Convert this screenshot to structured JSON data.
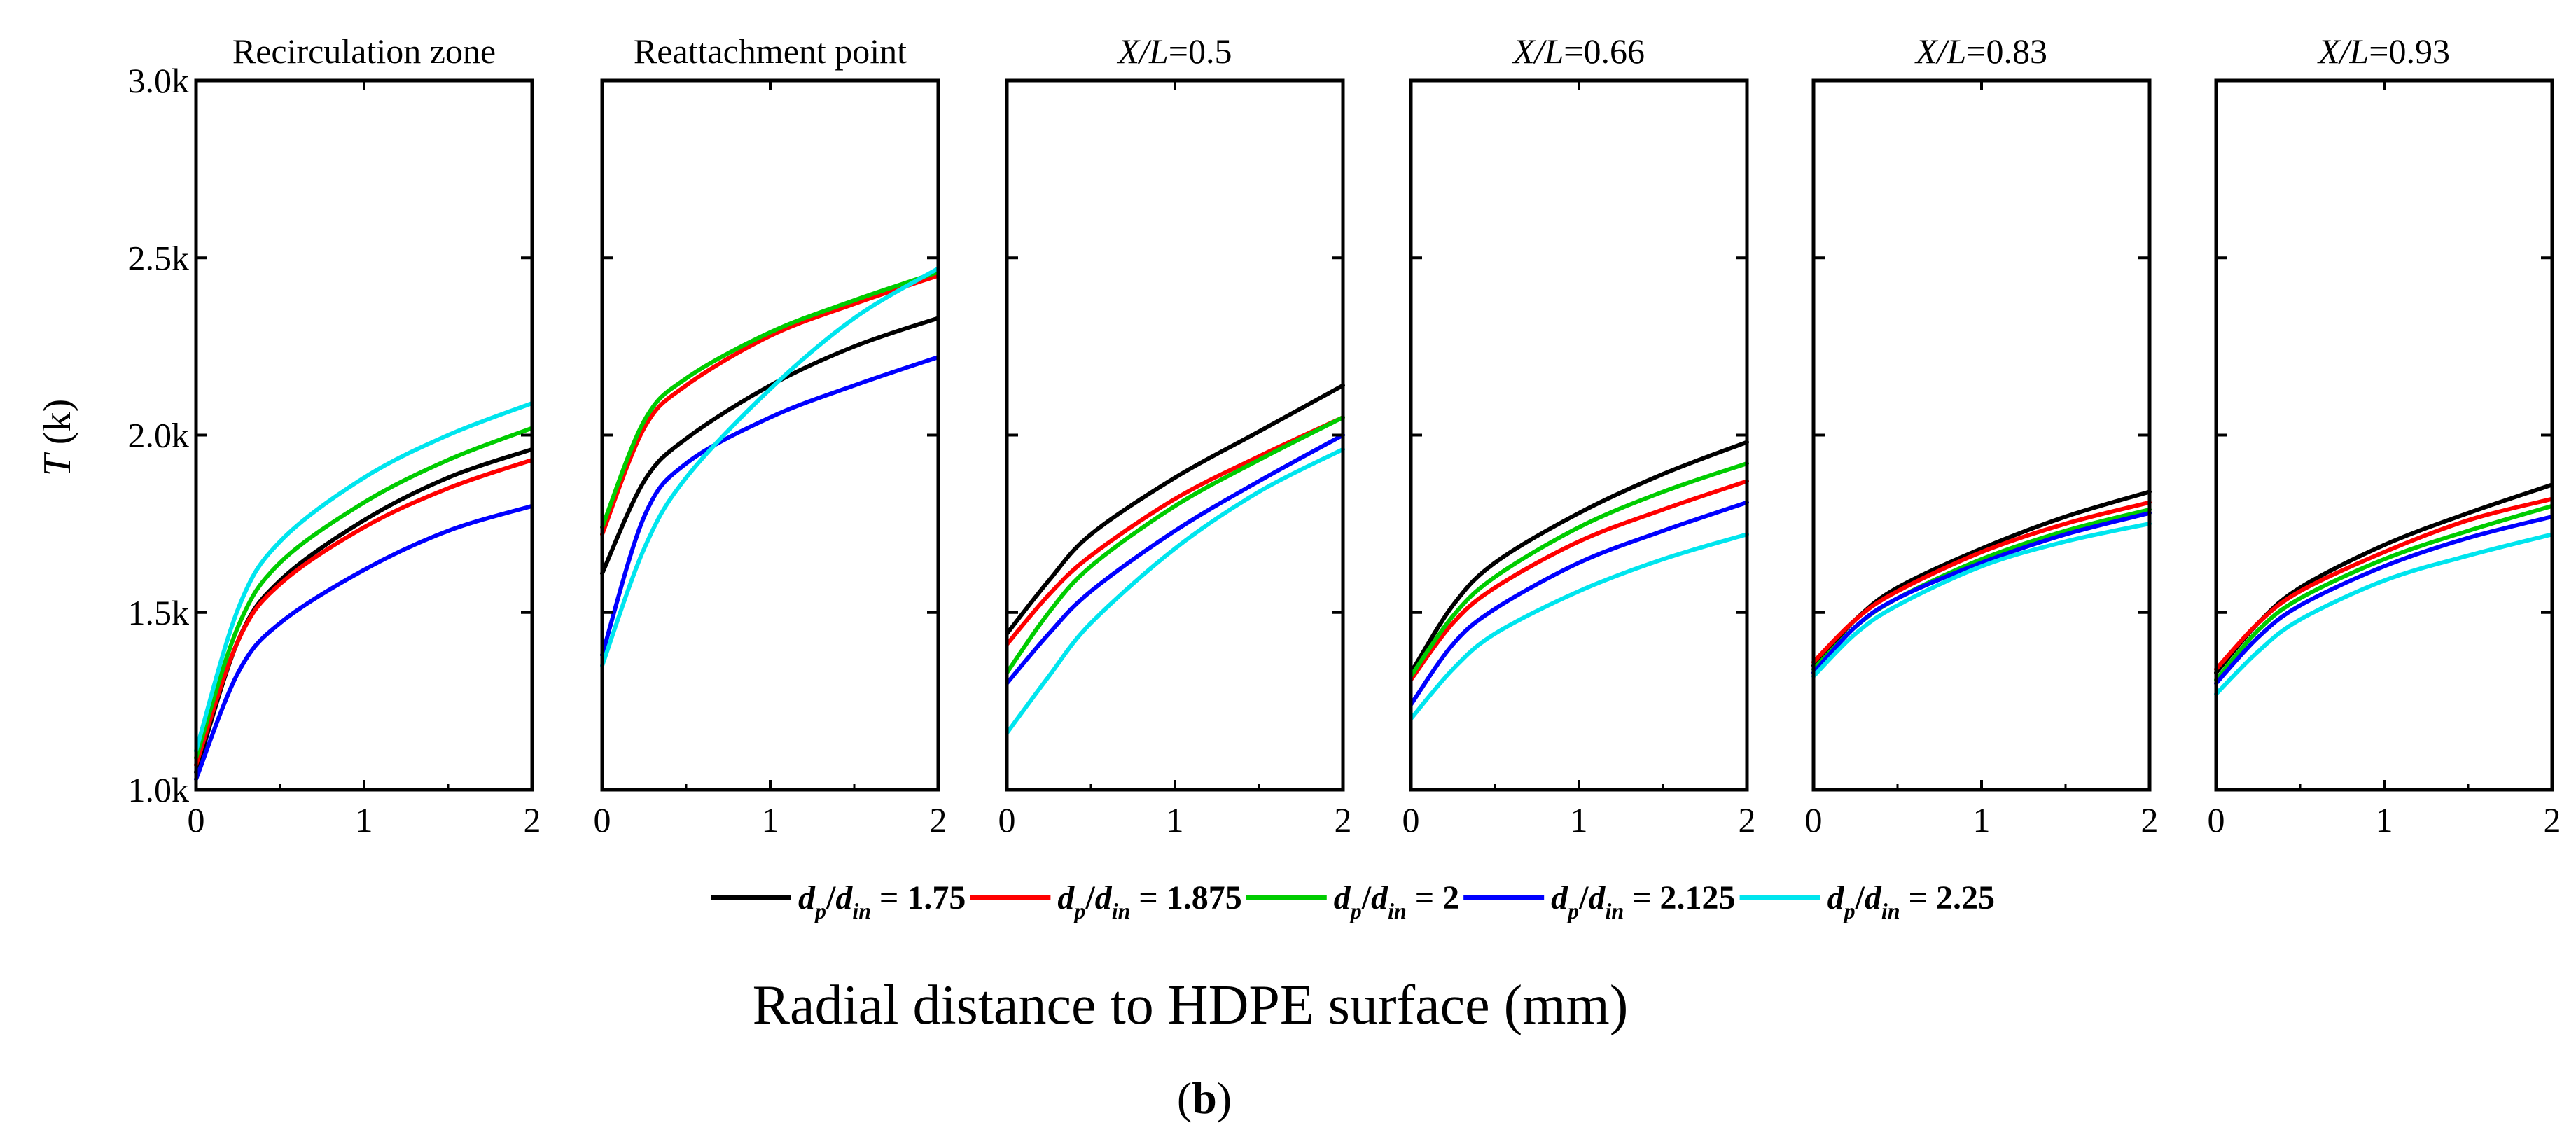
{
  "figure": {
    "xlabel": "Radial distance to HDPE surface (mm)",
    "ylabel_italic": "T",
    "ylabel_rest": " (k)",
    "caption_open": "(",
    "caption_letter": "b",
    "caption_close": ")"
  },
  "legend": [
    {
      "name": "d_p/d_in = 1.75",
      "sym1": "d",
      "sub1": "p",
      "slash": "/",
      "sym2": "d",
      "sub2": "in",
      "value_text": " = 1.75",
      "color": "#000000"
    },
    {
      "name": "d_p/d_in = 1.875",
      "sym1": "d",
      "sub1": "p",
      "slash": "/",
      "sym2": "d",
      "sub2": "in",
      "value_text": " = 1.875",
      "color": "#ff0000"
    },
    {
      "name": "d_p/d_in = 2",
      "sym1": "d",
      "sub1": "p",
      "slash": "/",
      "sym2": "d",
      "sub2": "in",
      "value_text": " = 2",
      "color": "#00cc00"
    },
    {
      "name": "d_p/d_in = 2.125",
      "sym1": "d",
      "sub1": "p",
      "slash": "/",
      "sym2": "d",
      "sub2": "in",
      "value_text": " = 2.125",
      "color": "#0000ff"
    },
    {
      "name": "d_p/d_in = 2.25",
      "sym1": "d",
      "sub1": "p",
      "slash": "/",
      "sym2": "d",
      "sub2": "in",
      "value_text": " = 2.25",
      "color": "#00e5ee"
    }
  ],
  "chart_data": {
    "type": "line",
    "shared_x": [
      0,
      0.25,
      0.5,
      1,
      1.5,
      2
    ],
    "x_ticks": [
      0,
      1,
      2
    ],
    "x_tick_labels": [
      "0",
      "1",
      "2"
    ],
    "xlim": [
      0,
      2
    ],
    "y_ticks": [
      1000,
      1500,
      2000,
      2500,
      3000
    ],
    "y_tick_labels": [
      "1.0k",
      "1.5k",
      "2.0k",
      "2.5k",
      "3.0k"
    ],
    "ylim": [
      1000,
      3000
    ],
    "panels": [
      {
        "title": "Recirculation zone",
        "title_italic": "",
        "title_rest": "",
        "series": [
          {
            "name": "d_p/d_in = 1.75",
            "values": [
              1050,
              1420,
              1590,
              1760,
              1880,
              1960
            ]
          },
          {
            "name": "d_p/d_in = 1.875",
            "values": [
              1070,
              1420,
              1580,
              1740,
              1850,
              1930
            ]
          },
          {
            "name": "d_p/d_in = 2",
            "values": [
              1090,
              1460,
              1640,
              1810,
              1930,
              2020
            ]
          },
          {
            "name": "d_p/d_in = 2.125",
            "values": [
              1030,
              1330,
              1470,
              1620,
              1730,
              1800
            ]
          },
          {
            "name": "d_p/d_in = 2.25",
            "values": [
              1110,
              1510,
              1700,
              1880,
              2000,
              2090
            ]
          }
        ]
      },
      {
        "title": "Reattachment point",
        "title_italic": "",
        "title_rest": "",
        "series": [
          {
            "name": "d_p/d_in = 1.75",
            "values": [
              1610,
              1870,
              1990,
              2140,
              2250,
              2330
            ]
          },
          {
            "name": "d_p/d_in = 1.875",
            "values": [
              1720,
              2020,
              2140,
              2280,
              2370,
              2450
            ]
          },
          {
            "name": "d_p/d_in = 2",
            "values": [
              1740,
              2040,
              2160,
              2290,
              2380,
              2460
            ]
          },
          {
            "name": "d_p/d_in = 2.125",
            "values": [
              1380,
              1770,
              1920,
              2050,
              2140,
              2220
            ]
          },
          {
            "name": "d_p/d_in = 2.25",
            "values": [
              1350,
              1680,
              1880,
              2130,
              2330,
              2470
            ]
          }
        ]
      },
      {
        "title": "",
        "title_italic": "X/L",
        "title_rest": "=0.5",
        "series": [
          {
            "name": "d_p/d_in = 1.75",
            "values": [
              1440,
              1590,
              1720,
              1880,
              2010,
              2140
            ]
          },
          {
            "name": "d_p/d_in = 1.875",
            "values": [
              1410,
              1550,
              1660,
              1820,
              1940,
              2050
            ]
          },
          {
            "name": "d_p/d_in = 2",
            "values": [
              1330,
              1500,
              1630,
              1800,
              1930,
              2050
            ]
          },
          {
            "name": "d_p/d_in = 2.125",
            "values": [
              1300,
              1440,
              1560,
              1730,
              1870,
              2000
            ]
          },
          {
            "name": "d_p/d_in = 2.25",
            "values": [
              1160,
              1320,
              1470,
              1680,
              1840,
              1960
            ]
          }
        ]
      },
      {
        "title": "",
        "title_italic": "X/L",
        "title_rest": "=0.66",
        "series": [
          {
            "name": "d_p/d_in = 1.75",
            "values": [
              1330,
              1520,
              1640,
              1780,
              1890,
              1980
            ]
          },
          {
            "name": "d_p/d_in = 1.875",
            "values": [
              1310,
              1470,
              1570,
              1700,
              1790,
              1870
            ]
          },
          {
            "name": "d_p/d_in = 2",
            "values": [
              1320,
              1490,
              1600,
              1740,
              1840,
              1920
            ]
          },
          {
            "name": "d_p/d_in = 2.125",
            "values": [
              1240,
              1410,
              1510,
              1640,
              1730,
              1810
            ]
          },
          {
            "name": "d_p/d_in = 2.25",
            "values": [
              1200,
              1340,
              1440,
              1560,
              1650,
              1720
            ]
          }
        ]
      },
      {
        "title": "",
        "title_italic": "X/L",
        "title_rest": "=0.83",
        "series": [
          {
            "name": "d_p/d_in = 1.75",
            "values": [
              1350,
              1480,
              1570,
              1680,
              1770,
              1840
            ]
          },
          {
            "name": "d_p/d_in = 1.875",
            "values": [
              1360,
              1480,
              1560,
              1670,
              1750,
              1810
            ]
          },
          {
            "name": "d_p/d_in = 2",
            "values": [
              1340,
              1460,
              1540,
              1650,
              1730,
              1790
            ]
          },
          {
            "name": "d_p/d_in = 2.125",
            "values": [
              1330,
              1460,
              1540,
              1640,
              1720,
              1780
            ]
          },
          {
            "name": "d_p/d_in = 2.25",
            "values": [
              1320,
              1440,
              1520,
              1630,
              1700,
              1750
            ]
          }
        ]
      },
      {
        "title": "",
        "title_italic": "X/L",
        "title_rest": "=0.93",
        "series": [
          {
            "name": "d_p/d_in = 1.75",
            "values": [
              1330,
              1470,
              1570,
              1690,
              1780,
              1860
            ]
          },
          {
            "name": "d_p/d_in = 1.875",
            "values": [
              1340,
              1470,
              1560,
              1670,
              1760,
              1820
            ]
          },
          {
            "name": "d_p/d_in = 2",
            "values": [
              1310,
              1450,
              1540,
              1650,
              1730,
              1800
            ]
          },
          {
            "name": "d_p/d_in = 2.125",
            "values": [
              1300,
              1430,
              1520,
              1630,
              1710,
              1770
            ]
          },
          {
            "name": "d_p/d_in = 2.25",
            "values": [
              1270,
              1390,
              1480,
              1590,
              1660,
              1720
            ]
          }
        ]
      }
    ]
  }
}
